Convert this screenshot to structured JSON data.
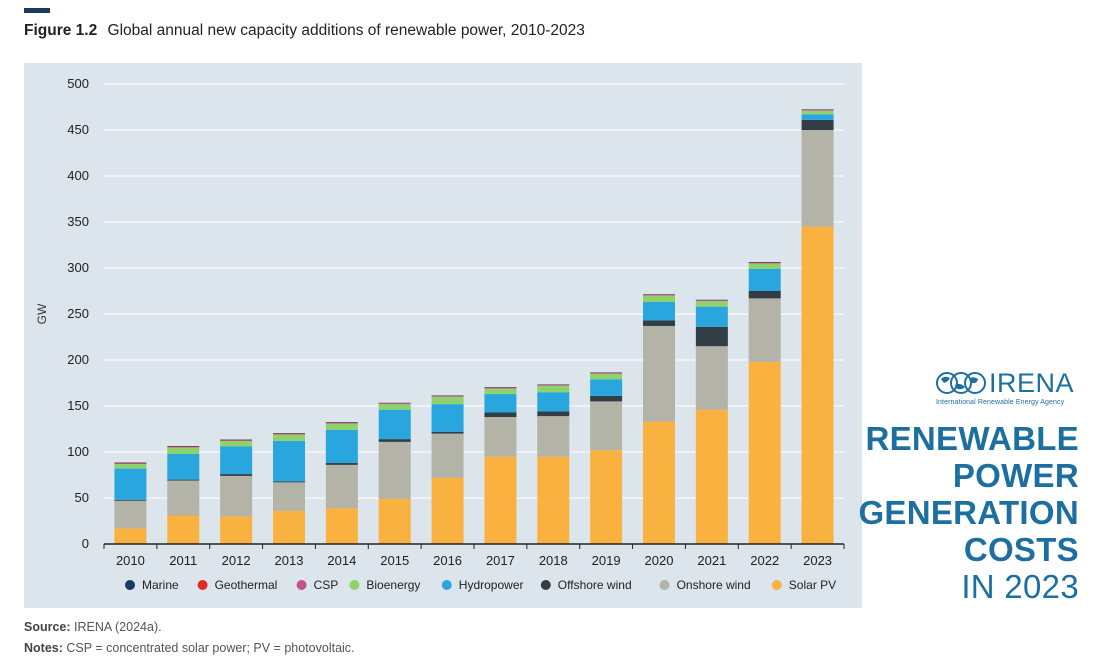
{
  "figure": {
    "number": "Figure 1.2",
    "title": "Global annual new capacity additions of renewable power, 2010-2023"
  },
  "footer": {
    "source_label": "Source:",
    "source_text": "IRENA (2024a).",
    "notes_label": "Notes:",
    "notes_text": "CSP = concentrated solar power; PV = photovoltaic."
  },
  "logo": {
    "word": "IRENA",
    "subtitle": "International Renewable Energy Agency"
  },
  "report": {
    "line1": "RENEWABLE",
    "line2": "POWER",
    "line3": "GENERATION",
    "line4": "COSTS",
    "line5": "IN 2023"
  },
  "chart_data": {
    "type": "bar",
    "stacked": true,
    "ylabel": "GW",
    "xlabel": "",
    "ylim": [
      0,
      500
    ],
    "yticks": [
      0,
      50,
      100,
      150,
      200,
      250,
      300,
      350,
      400,
      450,
      500
    ],
    "grid": true,
    "legend_position": "bottom",
    "categories": [
      "2010",
      "2011",
      "2012",
      "2013",
      "2014",
      "2015",
      "2016",
      "2017",
      "2018",
      "2019",
      "2020",
      "2021",
      "2022",
      "2023"
    ],
    "series": [
      {
        "name": "Solar PV",
        "color": "#f9b240",
        "values": [
          17,
          31,
          30,
          36,
          39,
          49,
          72,
          95,
          95,
          102,
          133,
          146,
          198,
          345
        ]
      },
      {
        "name": "Onshore wind",
        "color": "#b3b3a8",
        "values": [
          30,
          38,
          44,
          31,
          47,
          62,
          48,
          43,
          44,
          53,
          104,
          69,
          69,
          105
        ]
      },
      {
        "name": "Offshore wind",
        "color": "#333d45",
        "values": [
          1,
          1,
          2,
          1,
          2,
          3,
          2,
          5,
          5,
          6,
          6,
          21,
          8,
          11
        ]
      },
      {
        "name": "Hydropower",
        "color": "#2aa6df",
        "values": [
          34,
          28,
          30,
          44,
          36,
          32,
          30,
          20,
          21,
          18,
          20,
          22,
          24,
          6
        ]
      },
      {
        "name": "Bioenergy",
        "color": "#8fd16a",
        "values": [
          5,
          7,
          6,
          7,
          7,
          6,
          8,
          6,
          7,
          6,
          7,
          6,
          6,
          4
        ]
      },
      {
        "name": "CSP",
        "color": "#c4508e",
        "values": [
          0.5,
          0.5,
          0.5,
          0.5,
          0.5,
          0.5,
          0.5,
          0.5,
          0.5,
          0.5,
          0.5,
          0.5,
          0.5,
          0.5
        ]
      },
      {
        "name": "Geothermal",
        "color": "#e02a2a",
        "values": [
          0.5,
          0.5,
          0.5,
          0.5,
          0.5,
          0.5,
          0.5,
          0.5,
          0.5,
          0.5,
          0.5,
          0.5,
          0.5,
          0.5
        ]
      },
      {
        "name": "Marine",
        "color": "#1b3a63",
        "values": [
          0.5,
          0.5,
          0.5,
          0.5,
          0.5,
          0.5,
          0.5,
          0.5,
          0.5,
          0.5,
          0.5,
          0.5,
          0.5,
          0.5
        ]
      }
    ],
    "legend_order": [
      "Marine",
      "Geothermal",
      "CSP",
      "Bioenergy",
      "Hydropower",
      "Offshore wind",
      "Onshore wind",
      "Solar PV"
    ]
  }
}
